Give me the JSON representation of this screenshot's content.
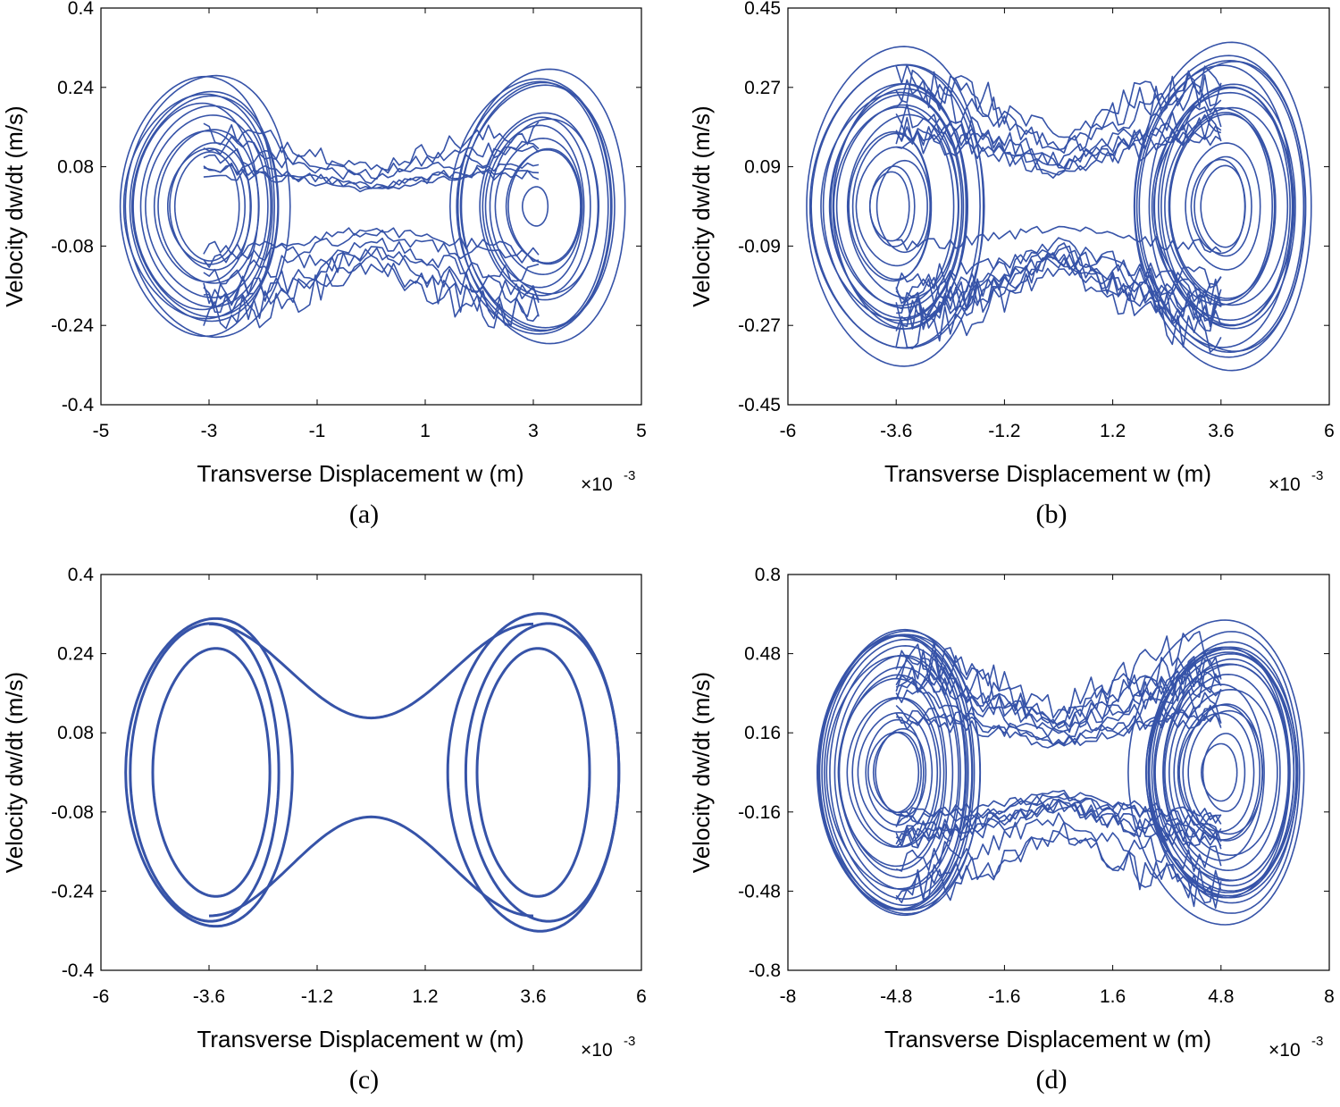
{
  "figure": {
    "line_color": "#3653a8",
    "axis_color": "#000000",
    "background": "#ffffff"
  },
  "chart_data": [
    {
      "type": "line",
      "caption": "(a)",
      "xlabel": "Transverse  Displacement  w  (m)",
      "xexponent": "×10",
      "xexponent_power": "-3",
      "ylabel": "Velocity  dw/dt  (m/s)",
      "xlim": [
        -5,
        5
      ],
      "ylim": [
        -0.4,
        0.4
      ],
      "xticks": [
        "-5",
        "-3",
        "-1",
        "1",
        "3",
        "5"
      ],
      "yticks": [
        "-0.4",
        "-0.24",
        "-0.08",
        "0.08",
        "0.24",
        "0.4"
      ],
      "behavior": "chaotic",
      "attractor": {
        "wells": [
          -3.1,
          3.1
        ],
        "max_amplitude": 1.55,
        "min_amplitude": 0.2,
        "peak_velocity": 0.29,
        "loops": 26
      }
    },
    {
      "type": "line",
      "caption": "(b)",
      "xlabel": "Transverse  Displacement  w  (m)",
      "xexponent": "×10",
      "xexponent_power": "-3",
      "ylabel": "Velocity  dw/dt  (m/s)",
      "xlim": [
        -6,
        6
      ],
      "ylim": [
        -0.45,
        0.45
      ],
      "xticks": [
        "-6",
        "-3.6",
        "-1.2",
        "1.2",
        "3.6",
        "6"
      ],
      "yticks": [
        "-0.45",
        "-0.27",
        "-0.09",
        "0.09",
        "0.27",
        "0.45"
      ],
      "behavior": "chaotic",
      "attractor": {
        "wells": [
          -3.6,
          3.6
        ],
        "max_amplitude": 2.0,
        "min_amplitude": 0.3,
        "peak_velocity": 0.38,
        "loops": 34
      }
    },
    {
      "type": "line",
      "caption": "(c)",
      "xlabel": "Transverse  Displacement  w  (m)",
      "xexponent": "×10",
      "xexponent_power": "-3",
      "ylabel": "Velocity  dw/dt  (m/s)",
      "xlim": [
        -6,
        6
      ],
      "ylim": [
        -0.4,
        0.4
      ],
      "xticks": [
        "-6",
        "-3.6",
        "-1.2",
        "1.2",
        "3.6",
        "6"
      ],
      "yticks": [
        "-0.4",
        "-0.24",
        "-0.08",
        "0.08",
        "0.24",
        "0.4"
      ],
      "behavior": "periodic",
      "orbits": [
        {
          "cx": -3.6,
          "ax": 1.85,
          "vy": 0.31
        },
        {
          "cx": -3.7,
          "ax": 1.65,
          "vy": 0.3
        },
        {
          "cx": -3.55,
          "ax": 1.3,
          "vy": 0.25
        },
        {
          "cx": 3.6,
          "ax": 1.9,
          "vy": 0.32
        },
        {
          "cx": 3.8,
          "ax": 1.7,
          "vy": 0.3
        },
        {
          "cx": 3.6,
          "ax": 1.25,
          "vy": 0.25
        }
      ],
      "bridge": {
        "x_from": -3.6,
        "x_to": 3.6,
        "upper_min_velocity": 0.11,
        "lower_max_velocity": -0.09
      }
    },
    {
      "type": "line",
      "caption": "(d)",
      "xlabel": "Transverse  Displacement  w  (m)",
      "xexponent": "×10",
      "xexponent_power": "-3",
      "ylabel": "Velocity  dw/dt  (m/s)",
      "xlim": [
        -8,
        8
      ],
      "ylim": [
        -0.8,
        0.8
      ],
      "xticks": [
        "-8",
        "-4.8",
        "-1.6",
        "1.6",
        "4.8",
        "8"
      ],
      "yticks": [
        "-0.8",
        "-0.48",
        "-0.16",
        "0.16",
        "0.48",
        "0.8"
      ],
      "behavior": "chaotic",
      "attractor": {
        "wells": [
          -4.8,
          4.8
        ],
        "max_amplitude": 2.6,
        "min_amplitude": 0.45,
        "peak_velocity": 0.66,
        "loops": 40
      }
    }
  ]
}
